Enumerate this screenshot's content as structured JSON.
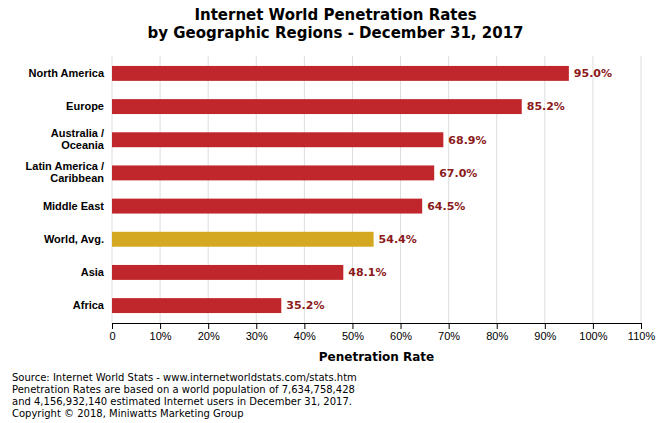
{
  "chart_data": {
    "type": "bar",
    "orientation": "horizontal",
    "title": "Internet World Penetration Rates\nby Geographic Regions - December 31, 2017",
    "categories": [
      "Africa",
      "Asia",
      "World, Avg.",
      "Middle East",
      "Latin America /\nCaribbean",
      "Australia /\nOceania",
      "Europe",
      "North America"
    ],
    "values": [
      35.2,
      48.1,
      54.4,
      64.5,
      67.0,
      68.9,
      85.2,
      95.0
    ],
    "value_labels": [
      "35.2%",
      "48.1%",
      "54.4%",
      "64.5%",
      "67.0%",
      "68.9%",
      "85.2%",
      "95.0%"
    ],
    "colors": [
      "#c0272d",
      "#c0272d",
      "#d4a820",
      "#c0272d",
      "#c0272d",
      "#c0272d",
      "#c0272d",
      "#c0272d"
    ],
    "xlabel": "Penetration Rate",
    "xlim": [
      0,
      110
    ],
    "xticks": [
      0,
      {
        "value": 10,
        "label": "10%"
      },
      {
        "value": 20,
        "label": "20%"
      },
      {
        "value": 30,
        "label": "30%"
      },
      {
        "value": 40,
        "label": "40%"
      },
      {
        "value": 50,
        "label": "50%"
      },
      {
        "value": 60,
        "label": "60%"
      },
      {
        "value": 70,
        "label": "70%"
      },
      {
        "value": 80,
        "label": "80%"
      },
      {
        "value": 90,
        "label": "90%"
      },
      {
        "value": 100,
        "label": "100%"
      },
      {
        "value": 110,
        "label": "110%"
      }
    ],
    "grid": true,
    "data_labels": true,
    "annotations": [
      "Source: Internet World Stats - www.internetworldstats.com/stats.htm\nPenetration Rates are based on a world population of 7,634,758,428\nand 4,156,932,140 estimated Internet users in December 31, 2017.\nCopyright © 2018, Miniwatts Marketing Group"
    ]
  }
}
